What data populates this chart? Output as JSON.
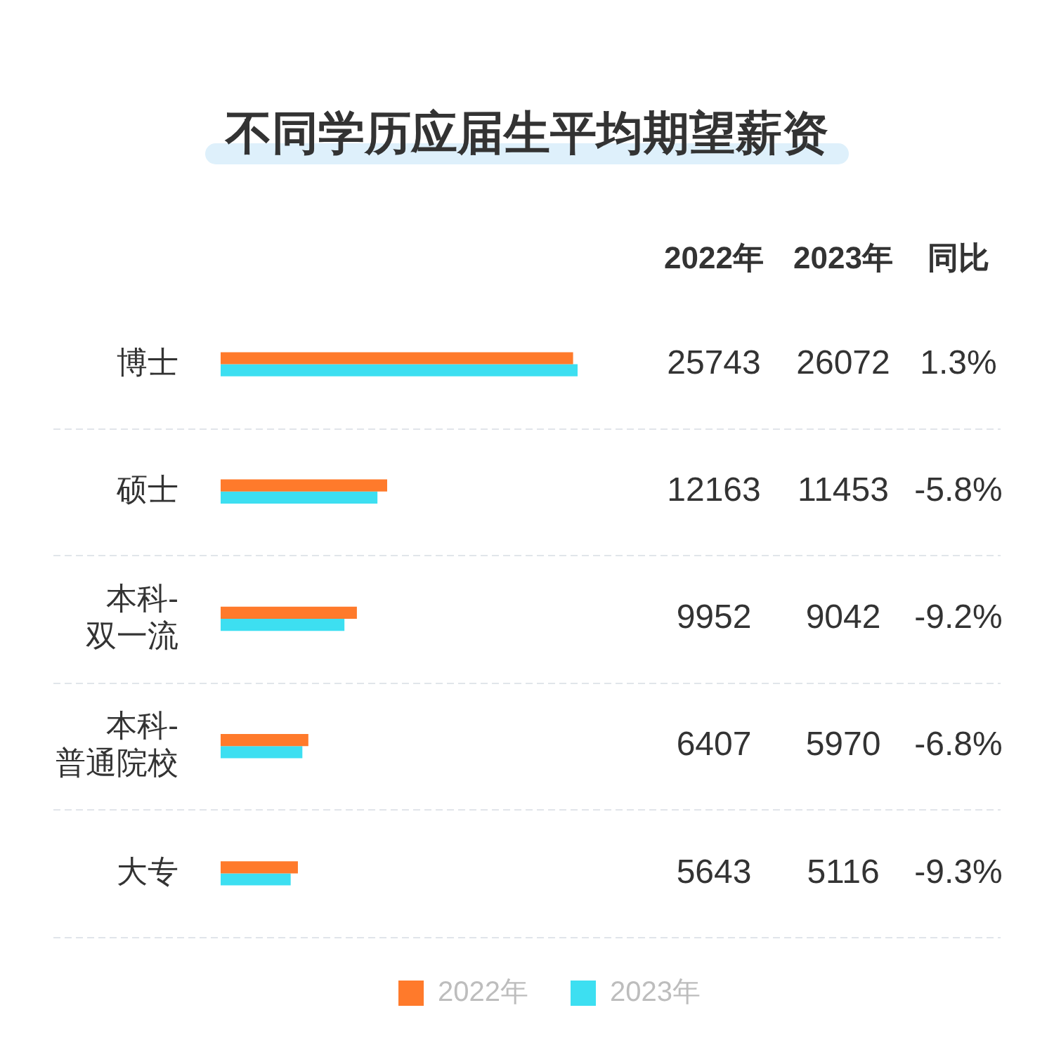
{
  "chart_data": {
    "type": "bar",
    "orientation": "horizontal",
    "title": "不同学历应届生平均期望薪资",
    "categories": [
      "博士",
      "硕士",
      "本科-双一流",
      "本科-普通院校",
      "大专"
    ],
    "series": [
      {
        "name": "2022年",
        "color": "#ff7a2b",
        "values": [
          25743,
          12163,
          9952,
          6407,
          5643
        ]
      },
      {
        "name": "2023年",
        "color": "#3ddff1",
        "values": [
          26072,
          11453,
          9042,
          5970,
          5116
        ]
      }
    ],
    "data_labels": true,
    "annotations": [
      "同比",
      "1.3%",
      "-5.8%",
      "-9.2%",
      "-6.8%",
      "-9.3%"
    ],
    "grid": "y",
    "legend": "bottom",
    "tick_labels": "y"
  }
}
